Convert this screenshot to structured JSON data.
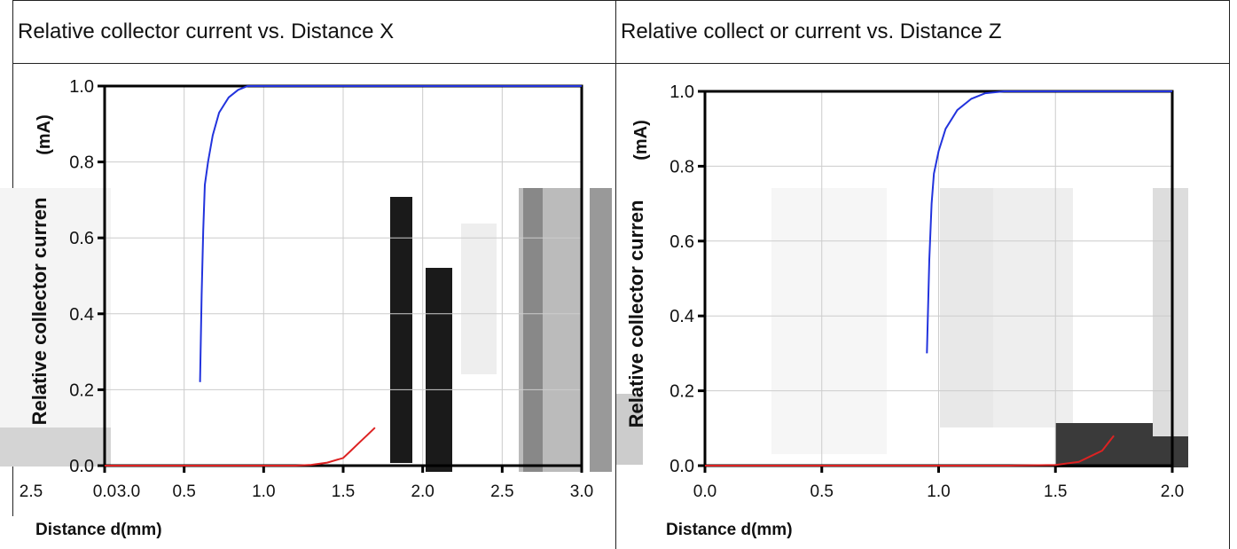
{
  "panels": [
    {
      "title": "Relative collector current vs. Distance X",
      "ylabel_top": "(mA)",
      "ylabel_main": "Relative collector curren",
      "xlabel": "Distance d(mm)",
      "xticks_extra": [
        "2.5",
        "3.0"
      ]
    },
    {
      "title": "Relative collect or current vs. Distance Z",
      "ylabel_top": "(mA)",
      "ylabel_main": "Relative collector curren",
      "xlabel": "Distance d(mm)",
      "xticks_extra": []
    }
  ],
  "chart_data": [
    {
      "type": "line",
      "title": "Relative collector current vs. Distance X",
      "xlabel": "Distance d(mm)",
      "ylabel": "Relative collector current (mA)",
      "xlim": [
        0.0,
        3.0
      ],
      "ylim": [
        0.0,
        1.0
      ],
      "xticks": [
        "0.0",
        "0.5",
        "1.0",
        "1.5",
        "2.0",
        "2.5",
        "3.0"
      ],
      "yticks": [
        "0.0",
        "0.2",
        "0.4",
        "0.6",
        "0.8",
        "1.0"
      ],
      "grid": true,
      "series": [
        {
          "color": "#2233dd",
          "x": [
            0.6,
            0.61,
            0.62,
            0.63,
            0.65,
            0.68,
            0.72,
            0.78,
            0.84,
            0.9,
            0.96,
            3.0
          ],
          "y": [
            0.22,
            0.45,
            0.62,
            0.74,
            0.8,
            0.87,
            0.93,
            0.97,
            0.99,
            1.0,
            1.0,
            1.0
          ]
        },
        {
          "color": "#dd2222",
          "x": [
            0.0,
            0.6,
            1.0,
            1.2,
            1.3,
            1.4,
            1.5,
            1.55,
            1.6,
            1.65,
            1.7
          ],
          "y": [
            0.0,
            0.0,
            0.0,
            0.0,
            0.002,
            0.008,
            0.02,
            0.04,
            0.06,
            0.08,
            0.1
          ]
        }
      ]
    },
    {
      "type": "line",
      "title": "Relative collect or current vs. Distance Z",
      "xlabel": "Distance d(mm)",
      "ylabel": "Relative collector current (mA)",
      "xlim": [
        0.0,
        2.0
      ],
      "ylim": [
        0.0,
        1.0
      ],
      "xticks": [
        "0.0",
        "0.5",
        "1.0",
        "1.5",
        "2.0"
      ],
      "yticks": [
        "0.0",
        "0.2",
        "0.4",
        "0.6",
        "0.8",
        "1.0"
      ],
      "grid": true,
      "series": [
        {
          "color": "#2233dd",
          "x": [
            0.95,
            0.96,
            0.97,
            0.98,
            1.0,
            1.03,
            1.08,
            1.14,
            1.2,
            1.28,
            2.0
          ],
          "y": [
            0.3,
            0.55,
            0.7,
            0.78,
            0.84,
            0.9,
            0.95,
            0.98,
            0.995,
            1.0,
            1.0
          ]
        },
        {
          "color": "#dd2222",
          "x": [
            0.0,
            1.0,
            1.3,
            1.5,
            1.6,
            1.7,
            1.75
          ],
          "y": [
            0.0,
            0.0,
            0.0,
            0.002,
            0.01,
            0.04,
            0.08
          ]
        }
      ]
    }
  ]
}
